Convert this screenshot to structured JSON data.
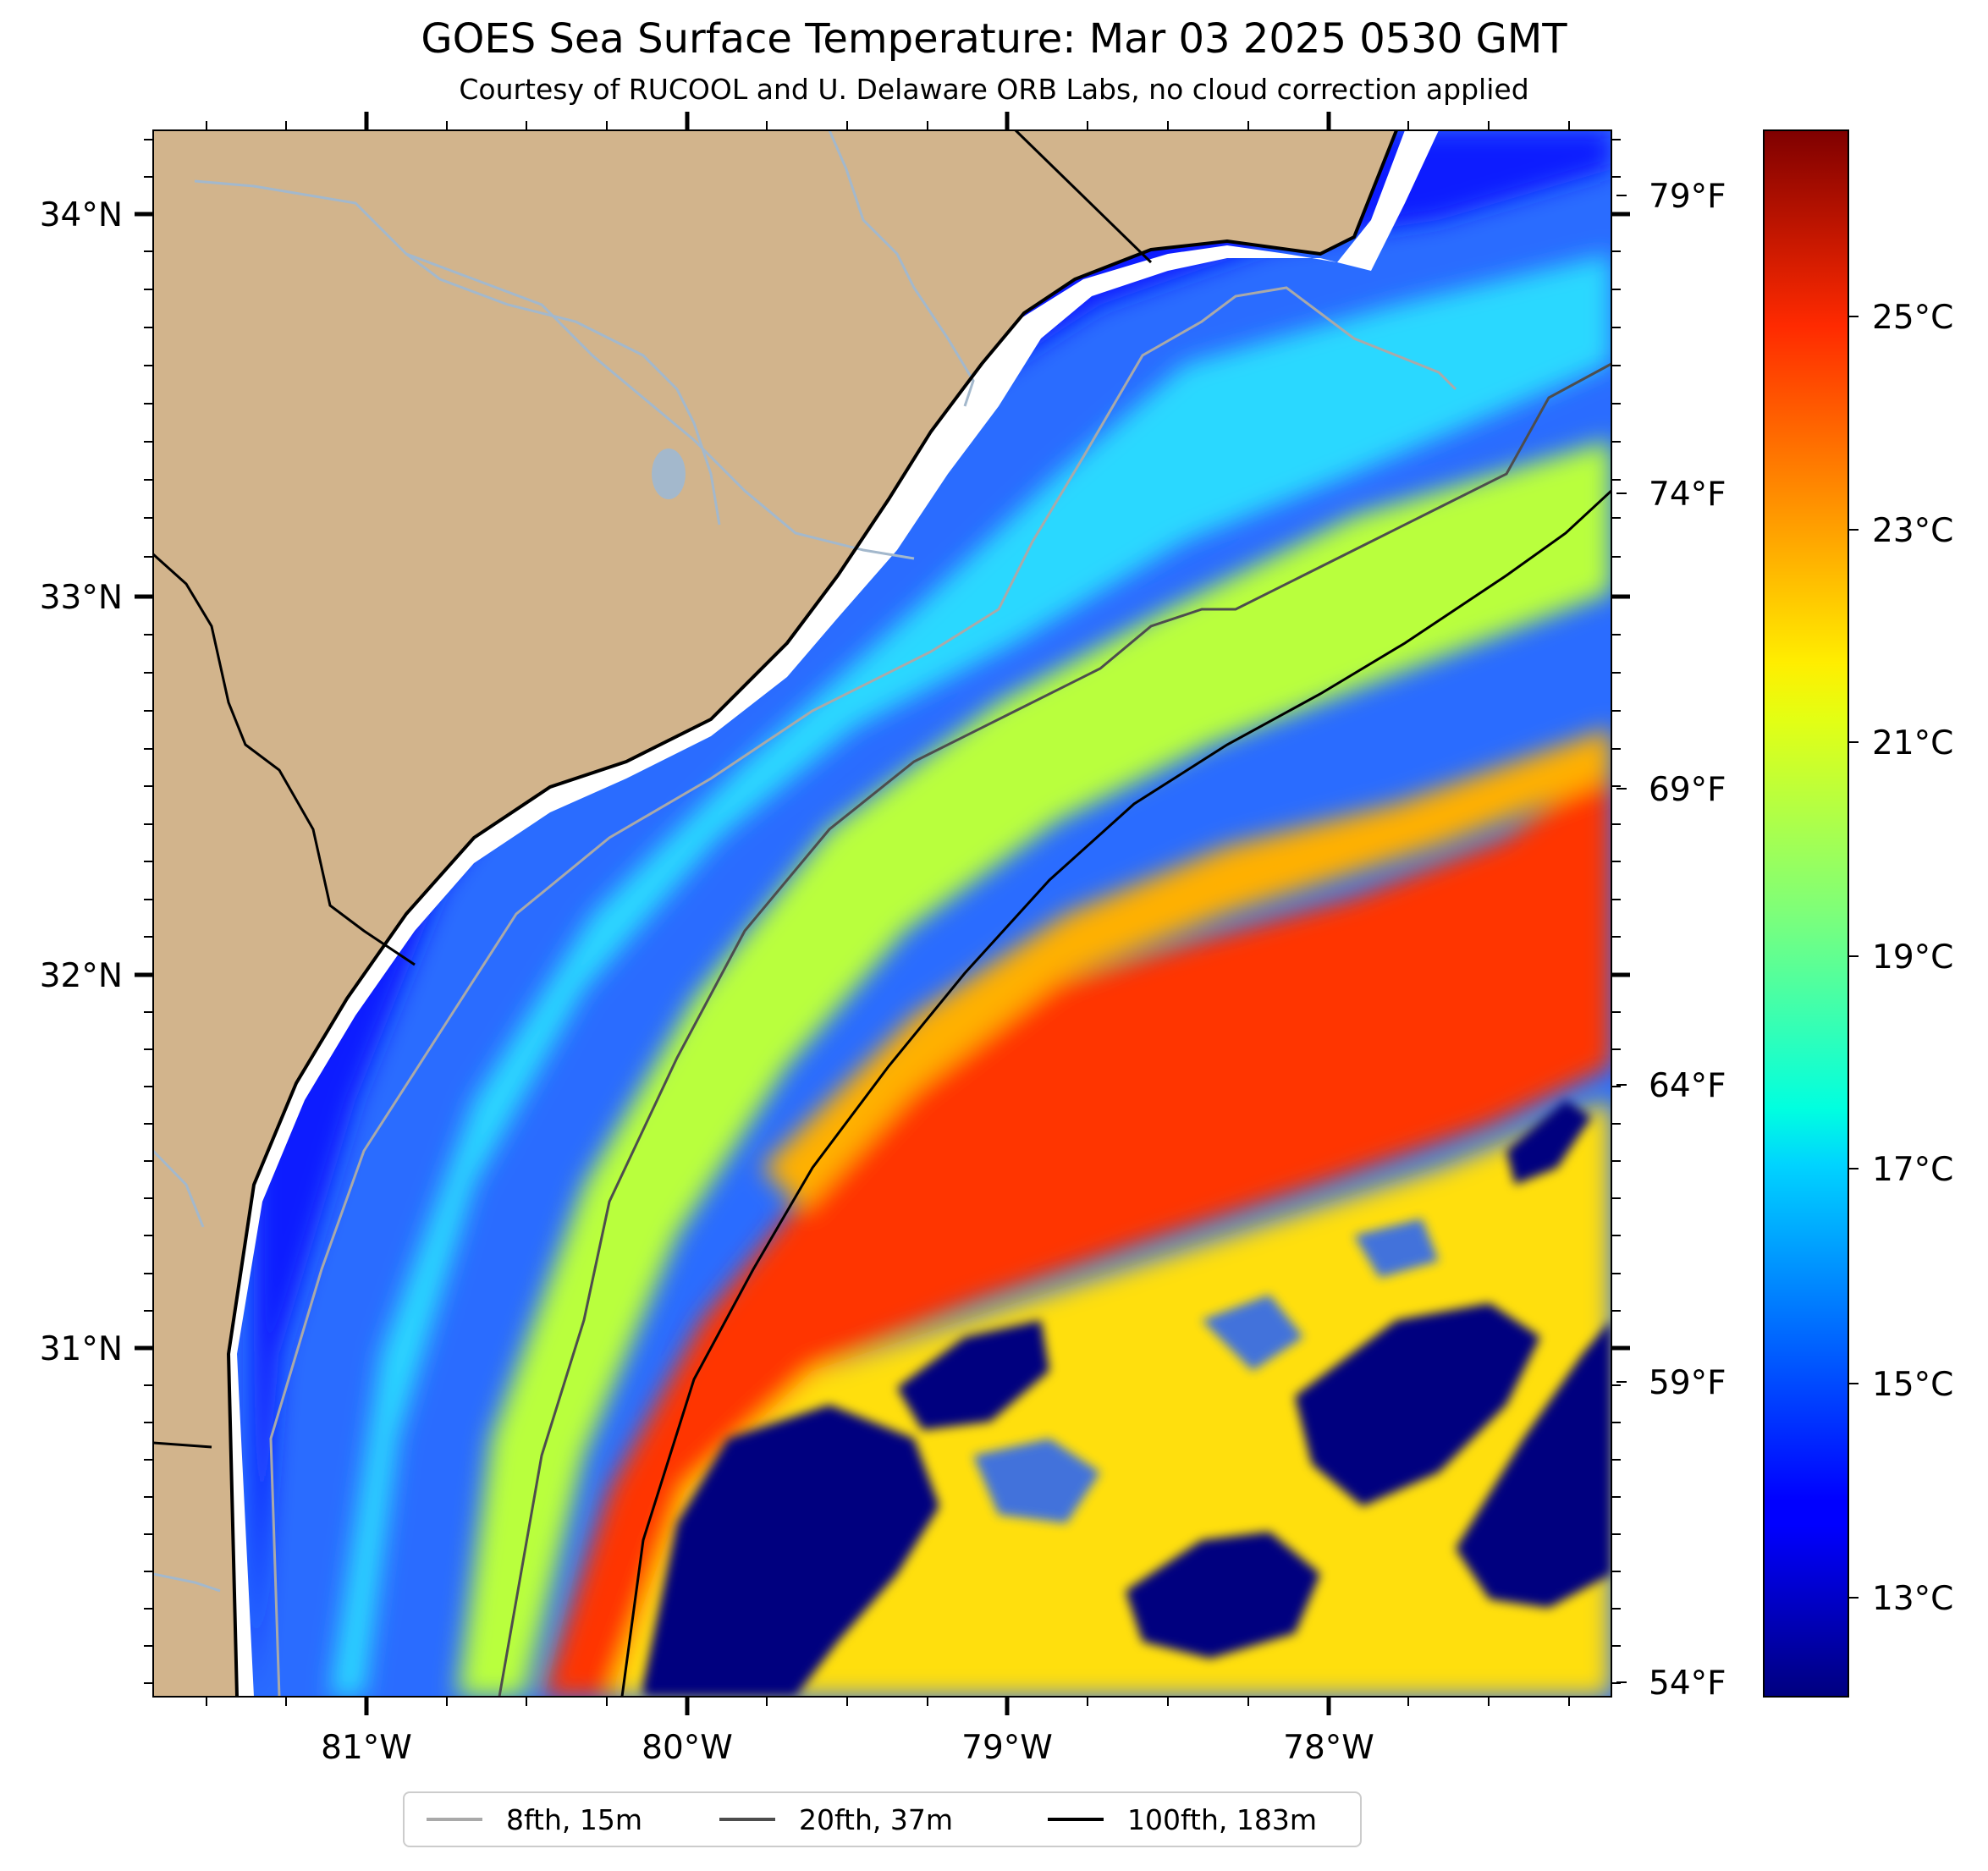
{
  "title": "GOES Sea Surface Temperature: Mar 03 2025 0530 GMT",
  "subtitle": "Courtesy of RUCOOL and U. Delaware ORB Labs, no cloud correction applied",
  "axes": {
    "latitude_labels": [
      "34°N",
      "33°N",
      "32°N",
      "31°N"
    ],
    "longitude_labels": [
      "81°W",
      "80°W",
      "79°W",
      "78°W"
    ],
    "fahrenheit_labels": [
      "79°F",
      "74°F",
      "69°F",
      "64°F",
      "59°F",
      "54°F"
    ],
    "lat_range": [
      30.1,
      34.22
    ],
    "lon_range": [
      -81.67,
      -77.1
    ]
  },
  "colorbar": {
    "colormap": "jet",
    "celsius_labels": [
      "25°C",
      "23°C",
      "21°C",
      "19°C",
      "17°C",
      "15°C",
      "13°C"
    ],
    "range_c": [
      12.2,
      27.0
    ]
  },
  "legend": {
    "items": [
      {
        "label": "8fth, 15m",
        "color": "#a9a9a9"
      },
      {
        "label": "20fth, 37m",
        "color": "#4d4d4d"
      },
      {
        "label": "100fth, 183m",
        "color": "#000000"
      }
    ]
  },
  "colors": {
    "land": "#d2b48c",
    "no_data": "#ffffff",
    "rivers": "#a3b8cc",
    "coastline": "#000000"
  }
}
